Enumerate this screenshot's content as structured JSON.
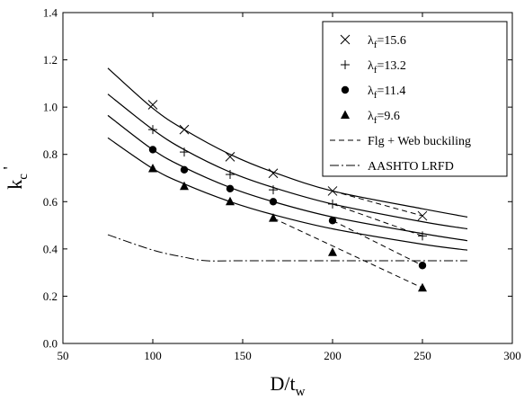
{
  "chart_data": {
    "type": "scatter",
    "xlabel": {
      "main": "D/t",
      "sub": "w"
    },
    "ylabel": {
      "main": "k",
      "sub": "c",
      "sup": "'"
    },
    "xlim": [
      50,
      300
    ],
    "ylim": [
      0,
      1.4
    ],
    "x_ticks": [
      50,
      100,
      150,
      200,
      250,
      300
    ],
    "y_ticks": [
      0.0,
      0.2,
      0.4,
      0.6,
      0.8,
      1.0,
      1.2,
      1.4
    ],
    "x_tick_labels": [
      "50",
      "100",
      "150",
      "200",
      "250",
      "300"
    ],
    "y_tick_labels": [
      "0.0",
      "0.2",
      "0.4",
      "0.6",
      "0.8",
      "1.0",
      "1.2",
      "1.4"
    ],
    "grid": false,
    "legend_position": "top-right",
    "legend": [
      {
        "marker": "x",
        "prefix": "λ",
        "sub": "f",
        "value": "=15.6"
      },
      {
        "marker": "plus",
        "prefix": "λ",
        "sub": "f",
        "value": "=13.2"
      },
      {
        "marker": "circle",
        "prefix": "λ",
        "sub": "f",
        "value": "=11.4"
      },
      {
        "marker": "triangle",
        "prefix": "λ",
        "sub": "f",
        "value": "=9.6"
      },
      {
        "marker": "dash",
        "text": "Flg + Web buckiling"
      },
      {
        "marker": "dashdot",
        "text": "AASHTO LRFD"
      }
    ],
    "series": [
      {
        "marker": "x",
        "points": [
          [
            100,
            1.01
          ],
          [
            117.5,
            0.905
          ],
          [
            143,
            0.79
          ],
          [
            167,
            0.72
          ],
          [
            200,
            0.645
          ],
          [
            250,
            0.54
          ]
        ],
        "curve": [
          [
            75,
            1.165
          ],
          [
            100,
            0.995
          ],
          [
            117.5,
            0.905
          ],
          [
            143,
            0.8
          ],
          [
            167,
            0.725
          ],
          [
            200,
            0.645
          ],
          [
            250,
            0.57
          ],
          [
            275,
            0.535
          ]
        ],
        "buckling": [
          [
            200,
            0.645
          ],
          [
            250,
            0.54
          ]
        ]
      },
      {
        "marker": "plus",
        "points": [
          [
            100,
            0.905
          ],
          [
            117.5,
            0.81
          ],
          [
            143,
            0.715
          ],
          [
            167,
            0.65
          ],
          [
            200,
            0.59
          ],
          [
            250,
            0.455
          ]
        ],
        "curve": [
          [
            75,
            1.055
          ],
          [
            100,
            0.905
          ],
          [
            117.5,
            0.82
          ],
          [
            143,
            0.725
          ],
          [
            167,
            0.66
          ],
          [
            200,
            0.59
          ],
          [
            250,
            0.515
          ],
          [
            275,
            0.485
          ]
        ],
        "buckling": [
          [
            200,
            0.59
          ],
          [
            250,
            0.455
          ]
        ]
      },
      {
        "marker": "circle",
        "points": [
          [
            100,
            0.82
          ],
          [
            117.5,
            0.735
          ],
          [
            143,
            0.655
          ],
          [
            167,
            0.6
          ],
          [
            200,
            0.52
          ],
          [
            250,
            0.33
          ]
        ],
        "curve": [
          [
            75,
            0.965
          ],
          [
            100,
            0.82
          ],
          [
            117.5,
            0.745
          ],
          [
            143,
            0.66
          ],
          [
            167,
            0.6
          ],
          [
            200,
            0.535
          ],
          [
            250,
            0.465
          ],
          [
            275,
            0.435
          ]
        ],
        "buckling": [
          [
            200,
            0.52
          ],
          [
            250,
            0.33
          ]
        ]
      },
      {
        "marker": "triangle",
        "points": [
          [
            100,
            0.74
          ],
          [
            117.5,
            0.665
          ],
          [
            143,
            0.6
          ],
          [
            167,
            0.53
          ],
          [
            200,
            0.385
          ],
          [
            250,
            0.235
          ]
        ],
        "curve": [
          [
            75,
            0.87
          ],
          [
            100,
            0.74
          ],
          [
            117.5,
            0.675
          ],
          [
            143,
            0.6
          ],
          [
            167,
            0.545
          ],
          [
            200,
            0.485
          ],
          [
            250,
            0.42
          ],
          [
            275,
            0.395
          ]
        ],
        "buckling": [
          [
            167,
            0.53
          ],
          [
            250,
            0.235
          ]
        ]
      }
    ],
    "aashto": [
      [
        75,
        0.46
      ],
      [
        100,
        0.395
      ],
      [
        117.5,
        0.365
      ],
      [
        130,
        0.35
      ],
      [
        150,
        0.35
      ],
      [
        200,
        0.35
      ],
      [
        275,
        0.35
      ]
    ]
  }
}
